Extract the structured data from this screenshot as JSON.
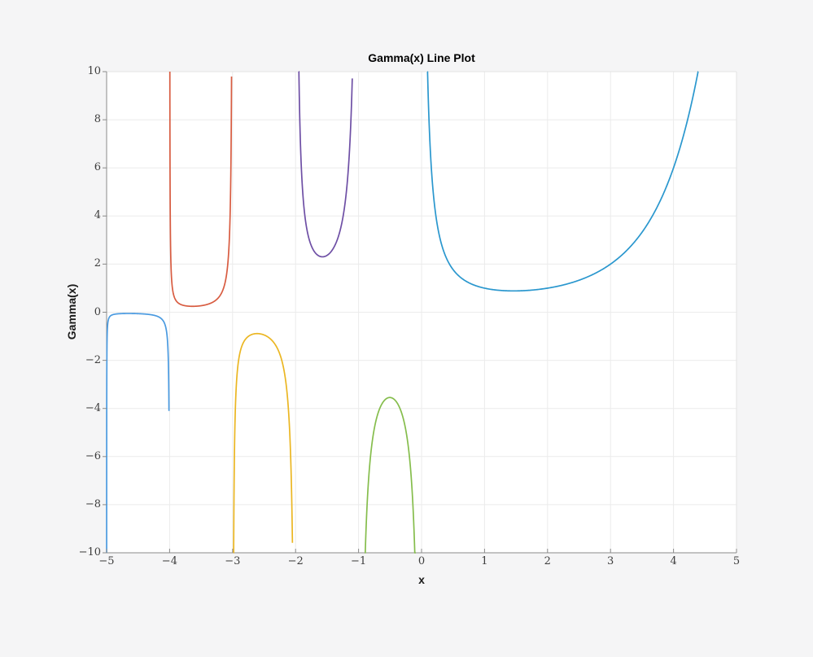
{
  "figure": {
    "background_color": "#F5F5F6",
    "plot_background_color": "#FFFFFF",
    "grid_color": "#EBEBEB",
    "spine_color": "#8A8A8A",
    "faint_border_color": "#E3E3E3",
    "tick_mark_color": "#8A8A8A",
    "tick_label_color": "#3D3D3D",
    "title_color": "#000000"
  },
  "chart_data": {
    "type": "line",
    "title": "Gamma(x) Line Plot",
    "xlabel": "x",
    "ylabel": "Gamma(x)",
    "xlim": [
      -5,
      5
    ],
    "ylim": [
      -10,
      10
    ],
    "xticks": [
      -5,
      -4,
      -3,
      -2,
      -1,
      0,
      1,
      2,
      3,
      4,
      5
    ],
    "yticks": [
      -10,
      -8,
      -6,
      -4,
      -2,
      0,
      2,
      4,
      6,
      8,
      10
    ],
    "grid": true,
    "legend": "none",
    "function": "Euler gamma function Gamma(x), drawn as separate colored branches between poles, values clipped to ylim",
    "poles": [
      -5,
      -4,
      -3,
      -2,
      -1,
      0
    ],
    "segments": [
      {
        "name": "branch -5 to -4",
        "color": "#4A9AE0",
        "x_start": -4.99917,
        "x_end": -4.01,
        "start_point": [
          -4.99917,
          -10
        ],
        "end_point": [
          -4.01,
          -4.06
        ],
        "extremum": [
          -4.6532,
          -0.0527
        ]
      },
      {
        "name": "branch -4 to -3",
        "color": "#D85C41",
        "x_start": -3.99583,
        "x_end": -3.01667,
        "start_point": [
          -3.99583,
          10
        ],
        "end_point": [
          -3.01667,
          10
        ],
        "extremum": [
          -3.6352,
          0.2451
        ]
      },
      {
        "name": "branch -3 to -2",
        "color": "#EBB622",
        "x_start": -2.98333,
        "x_end": -2.05,
        "start_point": [
          -2.98333,
          -10
        ],
        "end_point": [
          -2.05,
          -10
        ],
        "extremum": [
          -2.6107,
          -0.8881
        ]
      },
      {
        "name": "branch -2 to -1",
        "color": "#6E4FA5",
        "x_start": -1.95,
        "x_end": -1.1,
        "start_point": [
          -1.95,
          10
        ],
        "end_point": [
          -1.1,
          10
        ],
        "extremum": [
          -1.5735,
          2.3024
        ]
      },
      {
        "name": "branch -1 to 0",
        "color": "#85BD4C",
        "x_start": -0.9,
        "x_end": -0.0936,
        "start_point": [
          -0.9,
          -10
        ],
        "end_point": [
          -0.0936,
          -10
        ],
        "extremum": [
          -0.5041,
          -3.5446
        ]
      },
      {
        "name": "branch 0 to 5",
        "color": "#2A97CE",
        "x_start": 0.0951,
        "x_end": 4.3904,
        "start_point": [
          0.0951,
          10
        ],
        "end_point": [
          4.3904,
          10
        ],
        "extremum": [
          1.4616,
          0.8856
        ]
      }
    ]
  }
}
